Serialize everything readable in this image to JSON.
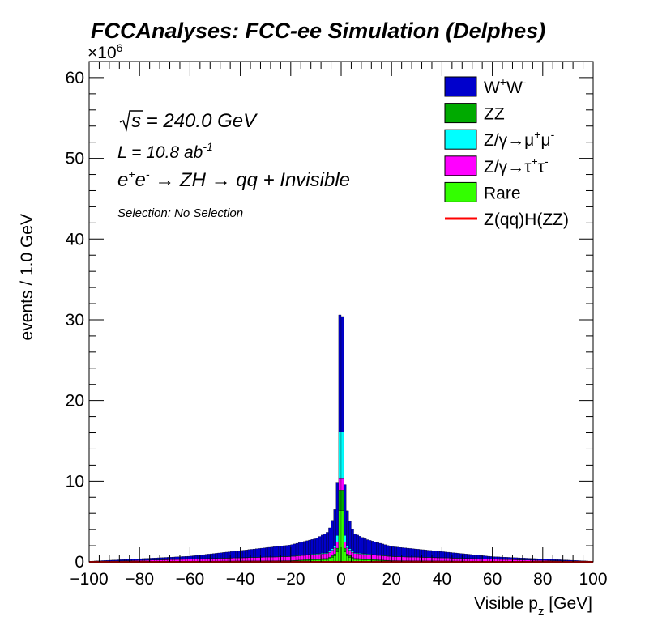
{
  "chart_data": {
    "type": "stacked-histogram",
    "title": "FCCAnalyses: FCC-ee Simulation (Delphes)",
    "xlabel_main": "Visible p",
    "xlabel_sub": "z",
    "xlabel_unit": " [GeV]",
    "ylabel": "events / 1.0 GeV",
    "y_multiplier_base": "×10",
    "y_multiplier_exp": "6",
    "xlim": [
      -100,
      100
    ],
    "ylim": [
      0,
      62
    ],
    "x_ticks": [
      -100,
      -80,
      -60,
      -40,
      -20,
      0,
      20,
      40,
      60,
      80,
      100
    ],
    "x_tick_labels": [
      "−100",
      "−80",
      "−60",
      "−40",
      "−20",
      "0",
      "20",
      "40",
      "60",
      "80",
      "100"
    ],
    "y_ticks": [
      0,
      10,
      20,
      30,
      40,
      50,
      60
    ],
    "y_tick_labels": [
      "0",
      "10",
      "20",
      "30",
      "40",
      "50",
      "60"
    ],
    "annotations": {
      "sqrt_s": "s = 240.0 GeV",
      "lumi_main": "L = 10.8 ab",
      "lumi_exp": "-1",
      "process_e1": "e",
      "process_sup1": "+",
      "process_e2": "e",
      "process_sup2": "-",
      "process_rest": " → ZH → qq + Invisible",
      "selection": "Selection: No Selection"
    },
    "stack_order": [
      "Rare",
      "ZZ",
      "Z/γ→τ+τ-",
      "Z/γ→μ+μ-",
      "W+W-"
    ],
    "series": [
      {
        "key": "ww",
        "name_main": "W",
        "sup1": "+",
        "mid": "W",
        "sup2": "-",
        "color": "#0000cc",
        "x": [
          -100,
          -60,
          -20,
          -10,
          -5,
          -3,
          -2,
          -1,
          0,
          1,
          2,
          3,
          5,
          10,
          20,
          60,
          100
        ],
        "values": [
          0.05,
          0.35,
          1.4,
          1.9,
          2.6,
          3.8,
          5.2,
          8.0,
          21.0,
          7.6,
          5.0,
          3.7,
          2.4,
          1.8,
          1.2,
          0.3,
          0.05
        ]
      },
      {
        "key": "zz",
        "name_main": "ZZ",
        "color": "#00aa00",
        "x": [
          -100,
          -20,
          -5,
          -2,
          -1,
          0,
          1,
          2,
          5,
          20,
          100
        ],
        "values": [
          0.0,
          0.05,
          0.15,
          0.3,
          0.6,
          4.5,
          0.6,
          0.3,
          0.15,
          0.05,
          0.0
        ]
      },
      {
        "key": "mumu",
        "name_main": "Z/γ→μ",
        "sup1": "+",
        "mid": "μ",
        "sup2": "-",
        "color": "#00ffff",
        "x": [
          -100,
          -20,
          -5,
          -2,
          -1,
          0,
          1,
          2,
          5,
          20,
          100
        ],
        "values": [
          0.0,
          0.05,
          0.1,
          0.3,
          1.3,
          10.3,
          1.3,
          0.3,
          0.1,
          0.05,
          0.0
        ]
      },
      {
        "key": "tautau",
        "name_main": "Z/γ→τ",
        "sup1": "+",
        "mid": "τ",
        "sup2": "-",
        "color": "#ff00ff",
        "x": [
          -100,
          -60,
          -20,
          -5,
          -1,
          0,
          1,
          5,
          20,
          60,
          100
        ],
        "values": [
          0.02,
          0.25,
          0.5,
          0.6,
          0.8,
          2.0,
          0.8,
          0.6,
          0.5,
          0.25,
          0.02
        ]
      },
      {
        "key": "rare",
        "name_main": "Rare",
        "color": "#33ff00",
        "x": [
          -100,
          -20,
          -5,
          -2,
          -1,
          0,
          1,
          2,
          5,
          20,
          100
        ],
        "values": [
          0.0,
          0.1,
          0.3,
          0.8,
          1.7,
          11.0,
          1.7,
          0.8,
          0.3,
          0.1,
          0.0
        ]
      },
      {
        "key": "signal",
        "name_main": "Z(qq)H(ZZ)",
        "color": "#ff0000",
        "style": "line",
        "x": [
          -100,
          0,
          100
        ],
        "values": [
          0.005,
          0.005,
          0.005
        ]
      }
    ],
    "legend_placement": "top-right"
  }
}
